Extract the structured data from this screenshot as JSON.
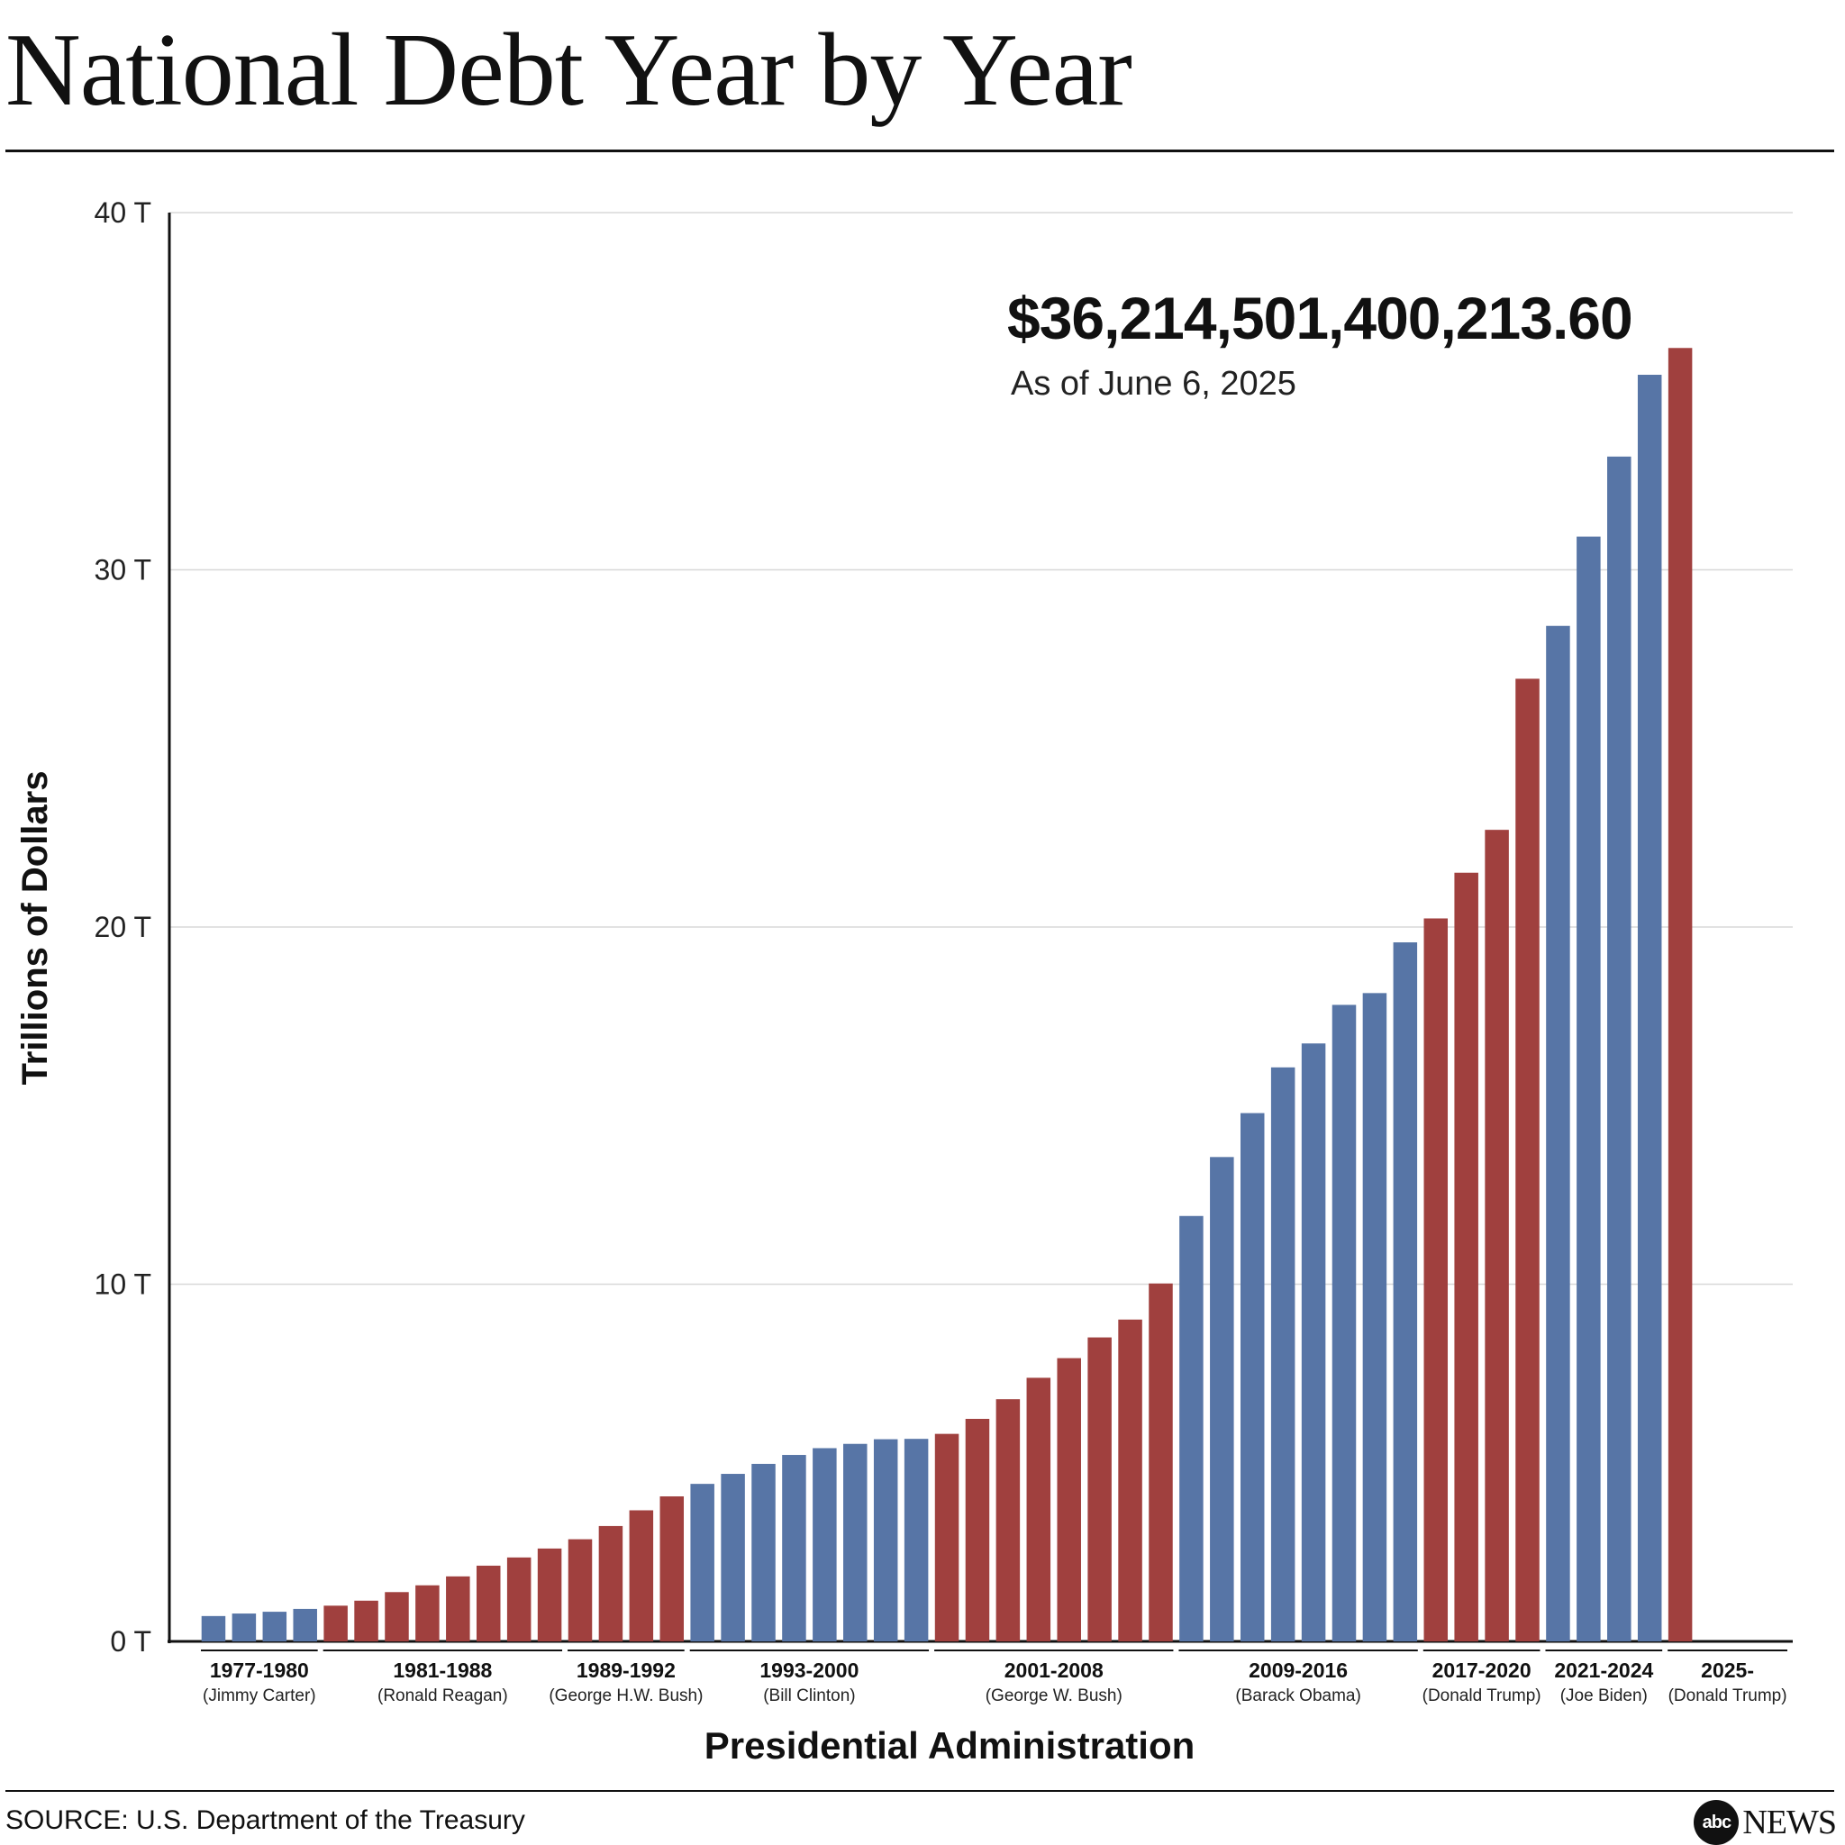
{
  "title": "National Debt Year by Year",
  "source": "SOURCE: U.S. Department of the Treasury",
  "logo": {
    "mark": "abc",
    "text": "NEWS"
  },
  "colors": {
    "democrat": "#5775a6",
    "republican": "#a0403e",
    "grid": "#d8d8d8",
    "axis": "#111111"
  },
  "chart_data": {
    "type": "bar",
    "title": "National Debt Year by Year",
    "xlabel": "Presidential Administration",
    "ylabel": "Trillions of Dollars",
    "ylim": [
      0,
      40
    ],
    "yticks": [
      0,
      10,
      20,
      30,
      40
    ],
    "ytick_labels": [
      "0 T",
      "10 T",
      "20 T",
      "30 T",
      "40 T"
    ],
    "grid": true,
    "callout": {
      "value": "$36,214,501,400,213.60",
      "note": "As of June 6, 2025"
    },
    "administrations": [
      {
        "years": "1977-1980",
        "president": "(Jimmy Carter)",
        "party": "democrat",
        "values": [
          0.71,
          0.78,
          0.83,
          0.91
        ]
      },
      {
        "years": "1981-1988",
        "president": "(Ronald Reagan)",
        "party": "republican",
        "values": [
          1.0,
          1.14,
          1.38,
          1.57,
          1.82,
          2.12,
          2.35,
          2.6
        ]
      },
      {
        "years": "1989-1992",
        "president": "(George H.W. Bush)",
        "party": "republican",
        "values": [
          2.86,
          3.23,
          3.67,
          4.06
        ]
      },
      {
        "years": "1993-2000",
        "president": "(Bill Clinton)",
        "party": "democrat",
        "values": [
          4.41,
          4.69,
          4.97,
          5.22,
          5.41,
          5.53,
          5.66,
          5.67
        ]
      },
      {
        "years": "2001-2008",
        "president": "(George W. Bush)",
        "party": "republican",
        "values": [
          5.81,
          6.23,
          6.78,
          7.38,
          7.93,
          8.51,
          9.01,
          10.02
        ]
      },
      {
        "years": "2009-2016",
        "president": "(Barack Obama)",
        "party": "democrat",
        "values": [
          11.91,
          13.56,
          14.79,
          16.07,
          16.74,
          17.82,
          18.15,
          19.57
        ]
      },
      {
        "years": "2017-2020",
        "president": "(Donald Trump)",
        "party": "republican",
        "values": [
          20.24,
          21.52,
          22.72,
          26.95
        ]
      },
      {
        "years": "2021-2024",
        "president": "(Joe Biden)",
        "party": "democrat",
        "values": [
          28.43,
          30.93,
          33.17,
          35.46
        ]
      },
      {
        "years": "2025-",
        "president": "(Donald Trump)",
        "party": "republican",
        "values": [
          36.21
        ]
      }
    ]
  }
}
